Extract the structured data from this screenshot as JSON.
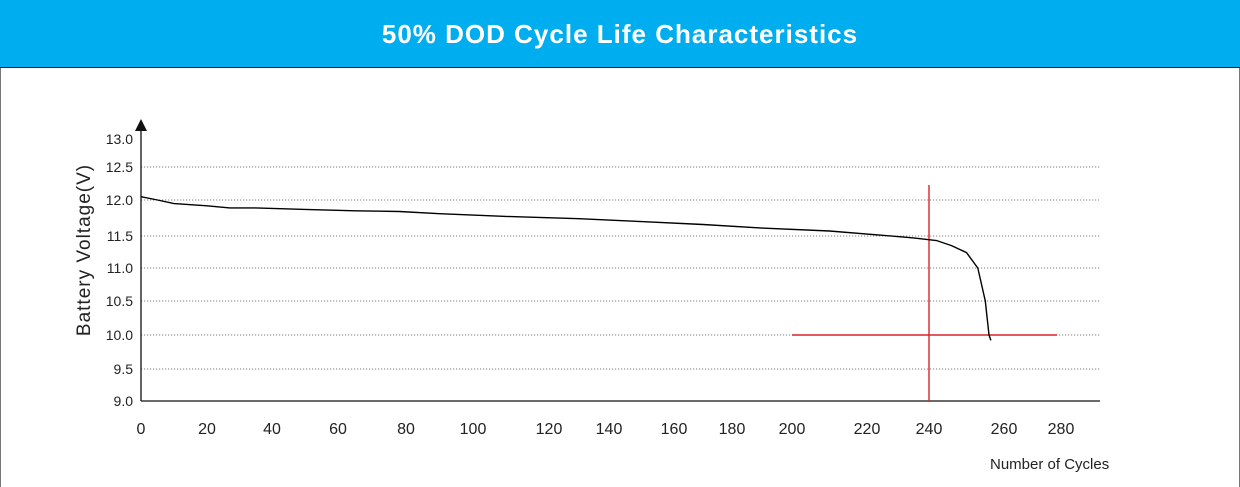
{
  "header": {
    "title": "50% DOD Cycle Life Characteristics"
  },
  "colors": {
    "header_bg": "#00aeef",
    "curve": "#000000",
    "marker": "#d8232a",
    "grid": "#555555"
  },
  "chart_data": {
    "type": "line",
    "title": "50% DOD Cycle Life Characteristics",
    "xlabel": "Number of Cycles",
    "ylabel": "Battery  Voltage(V)",
    "x_ticks": [
      "0",
      "20",
      "40",
      "60",
      "80",
      "100",
      "120",
      "140",
      "160",
      "180",
      "200",
      "220",
      "240",
      "260",
      "280"
    ],
    "y_ticks": [
      "13.0",
      "12.5",
      "12.0",
      "11.5",
      "11.0",
      "10.5",
      "10.0",
      "9.5",
      "9.0"
    ],
    "ylim": [
      9.0,
      13.0
    ],
    "grid": "horizontal dotted",
    "series": [
      {
        "points": [
          [
            0,
            12.05
          ],
          [
            5,
            12.0
          ],
          [
            10,
            11.95
          ],
          [
            20,
            11.92
          ],
          [
            27,
            11.89
          ],
          [
            35,
            11.89
          ],
          [
            50,
            11.87
          ],
          [
            65,
            11.85
          ],
          [
            78,
            11.84
          ],
          [
            90,
            11.81
          ],
          [
            110,
            11.77
          ],
          [
            130,
            11.74
          ],
          [
            150,
            11.7
          ],
          [
            170,
            11.66
          ],
          [
            190,
            11.61
          ],
          [
            210,
            11.57
          ],
          [
            225,
            11.51
          ],
          [
            235,
            11.47
          ],
          [
            242,
            11.43
          ],
          [
            246,
            11.35
          ],
          [
            250,
            11.24
          ],
          [
            253,
            11.0
          ],
          [
            255,
            10.5
          ],
          [
            256,
            10.0
          ],
          [
            256.5,
            9.92
          ]
        ]
      }
    ],
    "markers": {
      "vertical_x": 240,
      "horizontal_y": 10.0,
      "horizontal_x_range": [
        200,
        280
      ]
    }
  }
}
